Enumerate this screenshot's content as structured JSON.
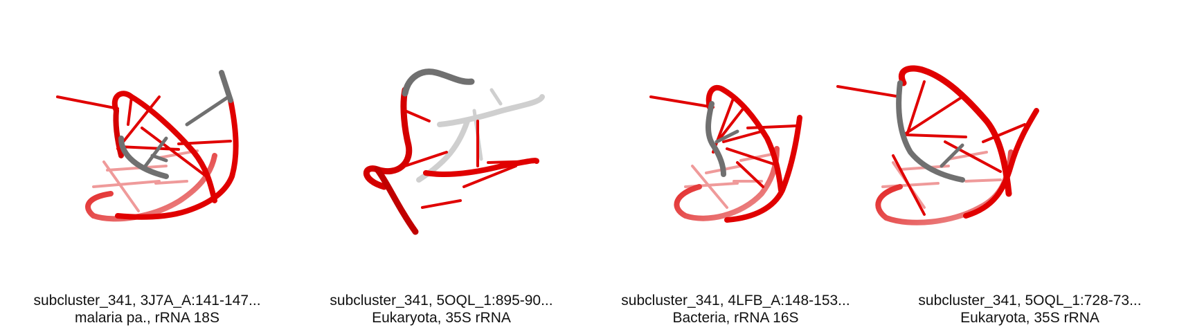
{
  "panels": [
    {
      "line1": "subcluster_341, 3J7A_A:141-147...",
      "line2": "malaria pa., rRNA 18S"
    },
    {
      "line1": "subcluster_341, 5OQL_1:895-90...",
      "line2": "Eukaryota, 35S rRNA"
    },
    {
      "line1": "subcluster_341, 4LFB_A:148-153...",
      "line2": "Bacteria, rRNA 16S"
    },
    {
      "line1": "subcluster_341, 5OQL_1:728-73...",
      "line2": "Eukaryota, 35S rRNA"
    }
  ],
  "colors": {
    "backbone": "#e00000",
    "backbone_dark": "#b00000",
    "backbone_faded": "#e88080",
    "segment_gray": "#707070",
    "segment_light": "#c8c8c8",
    "caption_text": "#111111"
  }
}
